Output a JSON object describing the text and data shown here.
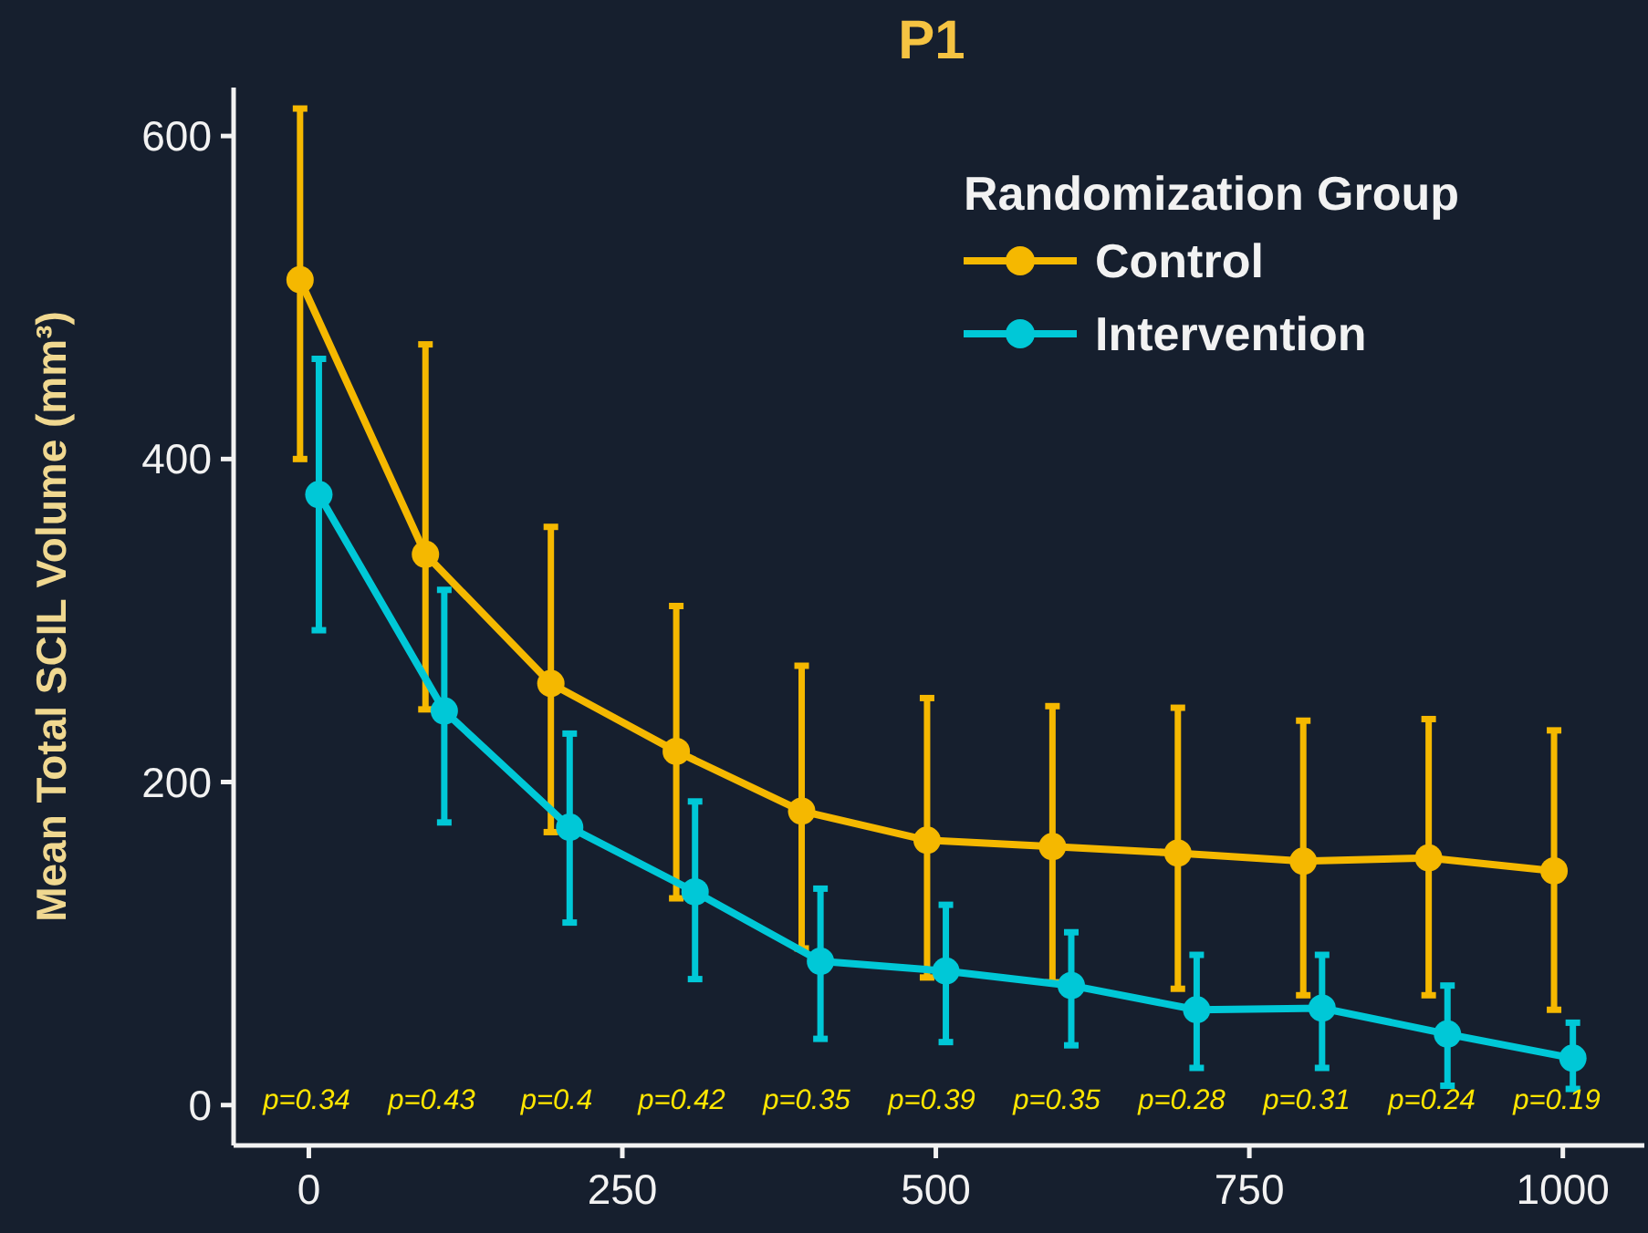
{
  "chart_data": {
    "type": "line",
    "title": "P1",
    "ylabel": "Mean Total SCIL Volume (mm³)",
    "legend_title": "Randomization Group",
    "xlim": [
      -60,
      1065
    ],
    "xticks": [
      0,
      250,
      500,
      750,
      1000
    ],
    "ylim": [
      -25,
      630
    ],
    "yticks": [
      0,
      200,
      400,
      600
    ],
    "grid": false,
    "legend": "top right",
    "marker": "circle",
    "line_style": "solid",
    "series": [
      {
        "name": "Control",
        "color": "#f5b800",
        "x": [
          -7,
          93,
          193,
          293,
          393,
          493,
          593,
          693,
          793,
          893,
          993
        ],
        "values": [
          511,
          341,
          261,
          219,
          182,
          164,
          160,
          156,
          151,
          153,
          145
        ],
        "errors": [
          [
            400,
            617
          ],
          [
            245,
            471
          ],
          [
            169,
            358
          ],
          [
            128,
            309
          ],
          [
            97,
            272
          ],
          [
            79,
            252
          ],
          [
            76,
            247
          ],
          [
            72,
            246
          ],
          [
            68,
            238
          ],
          [
            68,
            239
          ],
          [
            59,
            232
          ]
        ]
      },
      {
        "name": "Intervention",
        "color": "#00c8d7",
        "x": [
          8,
          108,
          208,
          308,
          408,
          508,
          608,
          708,
          808,
          908,
          1008
        ],
        "values": [
          378,
          244,
          172,
          132,
          89,
          83,
          74,
          59,
          60,
          44,
          29
        ],
        "errors": [
          [
            294,
            462
          ],
          [
            175,
            319
          ],
          [
            113,
            230
          ],
          [
            78,
            188
          ],
          [
            41,
            134
          ],
          [
            39,
            124
          ],
          [
            37,
            107
          ],
          [
            23,
            93
          ],
          [
            23,
            93
          ],
          [
            12,
            74
          ],
          [
            10,
            51
          ]
        ]
      }
    ],
    "annotations": [
      "p=0.34",
      "p=0.43",
      "p=0.4",
      "p=0.42",
      "p=0.35",
      "p=0.39",
      "p=0.35",
      "p=0.28",
      "p=0.31",
      "p=0.24",
      "p=0.19"
    ]
  }
}
